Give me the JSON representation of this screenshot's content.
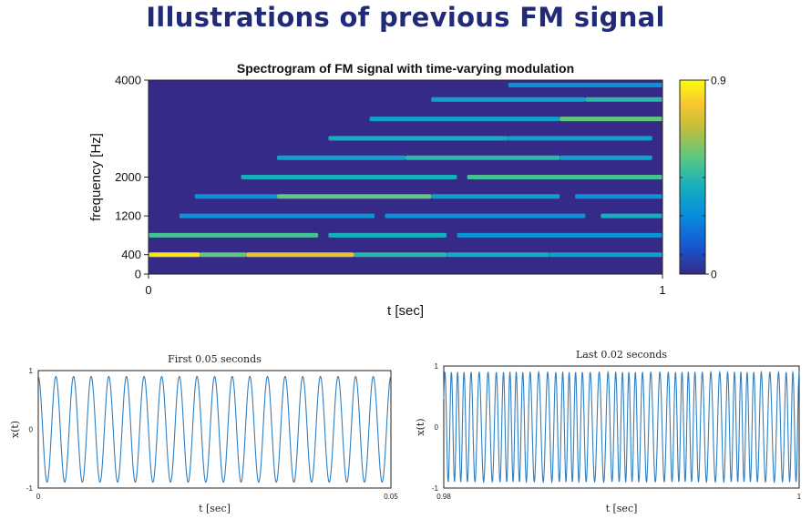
{
  "page": {
    "title": "Illustrations of previous FM signal"
  },
  "chart_data": [
    {
      "type": "heatmap",
      "title": "Spectrogram of FM signal with time-varying modulation",
      "xlabel": "t [sec]",
      "ylabel": "frequency [Hz]",
      "xlim": [
        0,
        1
      ],
      "ylim": [
        0,
        4000
      ],
      "x_ticks": [
        "0",
        "1"
      ],
      "y_ticks": [
        "0",
        "400",
        "1200",
        "2000",
        "4000"
      ],
      "colorbar": {
        "range": [
          0,
          0.9
        ],
        "ticks": [
          "0",
          "0.9"
        ],
        "colormap": "parula"
      },
      "background_color": "#352a87",
      "bands": [
        {
          "freq": 400,
          "segments": [
            [
              0.0,
              0.1,
              0.85
            ],
            [
              0.1,
              0.19,
              0.55
            ],
            [
              0.19,
              0.4,
              0.75
            ],
            [
              0.4,
              0.58,
              0.45
            ],
            [
              0.58,
              0.78,
              0.4
            ],
            [
              0.78,
              1.0,
              0.35
            ]
          ]
        },
        {
          "freq": 800,
          "segments": [
            [
              0.0,
              0.33,
              0.5
            ],
            [
              0.35,
              0.58,
              0.4
            ],
            [
              0.6,
              1.0,
              0.3
            ]
          ]
        },
        {
          "freq": 1200,
          "segments": [
            [
              0.06,
              0.44,
              0.3
            ],
            [
              0.46,
              0.85,
              0.3
            ],
            [
              0.88,
              1.0,
              0.4
            ]
          ]
        },
        {
          "freq": 1600,
          "segments": [
            [
              0.09,
              0.25,
              0.3
            ],
            [
              0.25,
              0.55,
              0.55
            ],
            [
              0.55,
              0.8,
              0.35
            ],
            [
              0.83,
              1.0,
              0.3
            ]
          ]
        },
        {
          "freq": 2000,
          "segments": [
            [
              0.18,
              0.6,
              0.4
            ],
            [
              0.62,
              1.0,
              0.5
            ]
          ]
        },
        {
          "freq": 2400,
          "segments": [
            [
              0.25,
              0.5,
              0.35
            ],
            [
              0.5,
              0.8,
              0.45
            ],
            [
              0.8,
              0.98,
              0.35
            ]
          ]
        },
        {
          "freq": 2800,
          "segments": [
            [
              0.35,
              0.7,
              0.4
            ],
            [
              0.7,
              0.98,
              0.35
            ]
          ]
        },
        {
          "freq": 3200,
          "segments": [
            [
              0.43,
              0.8,
              0.35
            ],
            [
              0.8,
              1.0,
              0.55
            ]
          ]
        },
        {
          "freq": 3600,
          "segments": [
            [
              0.55,
              0.85,
              0.35
            ],
            [
              0.85,
              1.0,
              0.45
            ]
          ]
        },
        {
          "freq": 3900,
          "segments": [
            [
              0.7,
              1.0,
              0.3
            ]
          ]
        }
      ]
    },
    {
      "type": "line",
      "title": "First 0.05 seconds",
      "xlabel": "t [sec]",
      "ylabel": "x(t)",
      "xlim": [
        0,
        0.05
      ],
      "ylim": [
        -1,
        1
      ],
      "x_ticks": [
        "0",
        "0.05"
      ],
      "y_ticks": [
        "-1",
        "0",
        "1"
      ],
      "series": [
        {
          "function": "cos",
          "frequency_hz": 400,
          "amplitude": 0.9,
          "color": "#2f7fc1"
        }
      ]
    },
    {
      "type": "line",
      "title": "Last 0.02 seconds",
      "xlabel": "t [sec]",
      "ylabel": "x(t)",
      "xlim": [
        0.98,
        1
      ],
      "ylim": [
        -1,
        1
      ],
      "x_ticks": [
        "0.98",
        "1"
      ],
      "y_ticks": [
        "-1",
        "0",
        "1"
      ],
      "series": [
        {
          "function": "multi-tone FM",
          "amplitude": 0.9,
          "color": "#2f7fc1"
        }
      ]
    }
  ]
}
